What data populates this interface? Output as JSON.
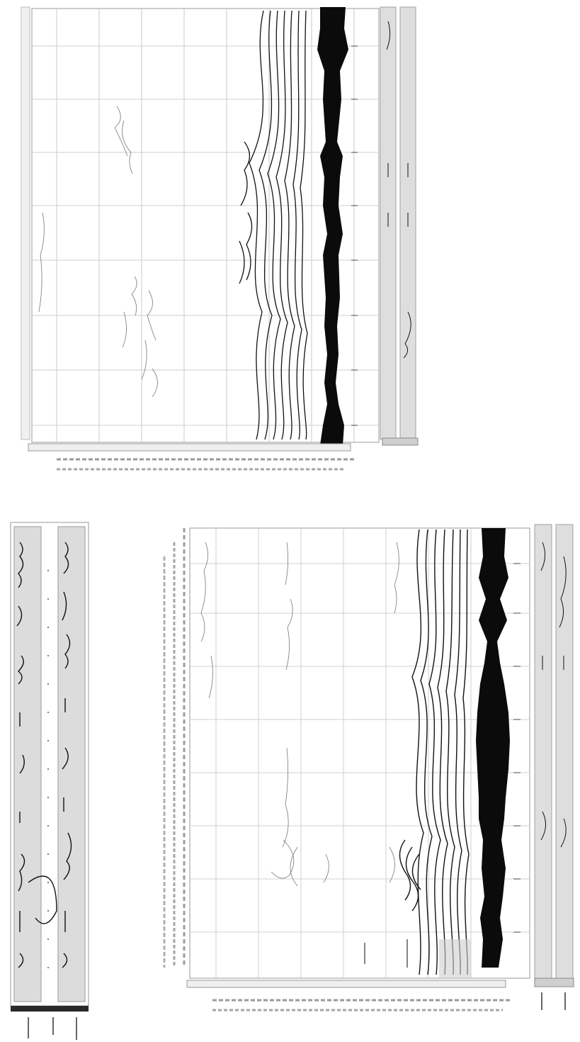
{
  "figure": {
    "note": "",
    "panels": [
      "top-record",
      "bottom-record",
      "side-strip"
    ]
  },
  "chart_data": [
    {
      "type": "line",
      "title": "",
      "xlabel": "",
      "ylabel": "",
      "grid": true,
      "series": [
        {
          "values": []
        }
      ]
    },
    {
      "type": "line",
      "title": "",
      "xlabel": "",
      "ylabel": "",
      "grid": true,
      "series": [
        {
          "values": []
        }
      ]
    }
  ],
  "colors": {
    "ink": "#111111",
    "grid": "#b8b8b8",
    "strip": "#d9d9d9",
    "paper": "#ffffff"
  }
}
